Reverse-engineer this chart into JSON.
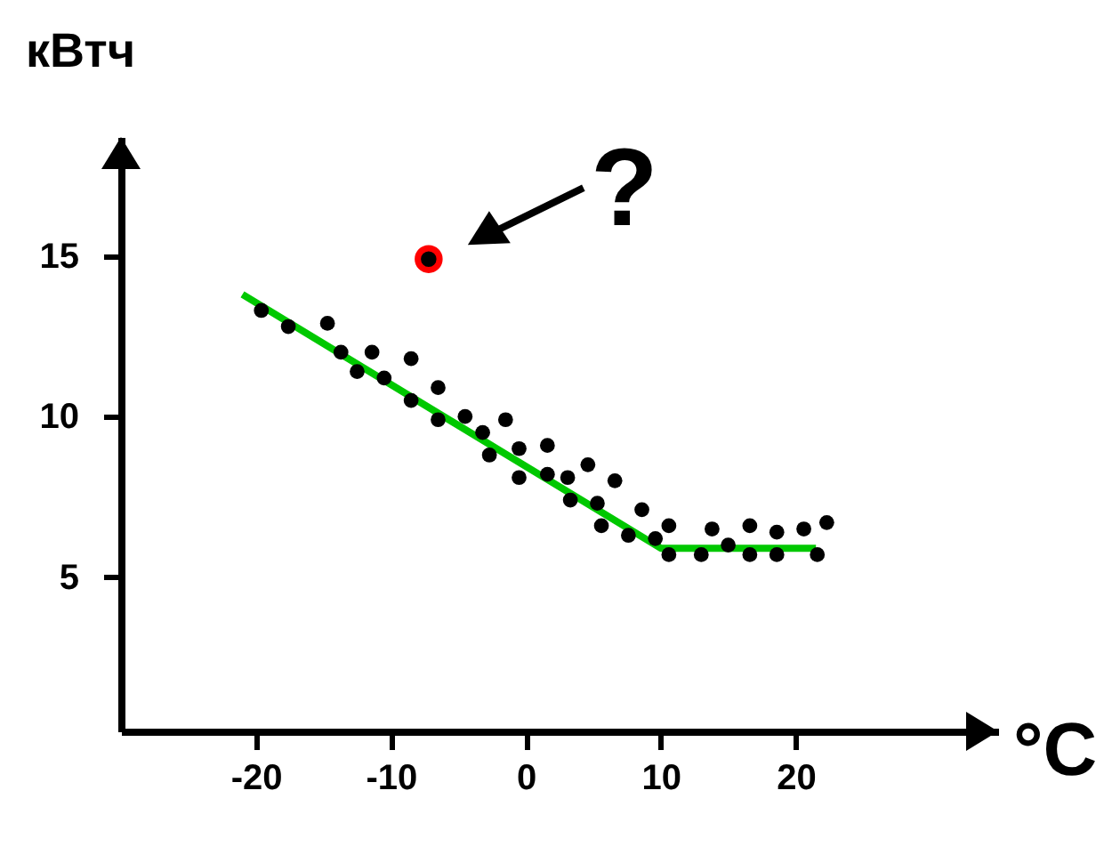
{
  "chart_data": {
    "type": "scatter",
    "xlabel": "°C",
    "ylabel": "кВтч",
    "xlim": [
      -30,
      35
    ],
    "ylim": [
      0.2,
      18.7
    ],
    "xticks": [
      -20,
      -10,
      0,
      10,
      20
    ],
    "yticks": [
      5,
      10,
      15
    ],
    "grid": false,
    "line_style": "solid",
    "annotations": [
      {
        "text": "?",
        "x": -7.2,
        "y": 14.9
      }
    ],
    "series": [
      {
        "marker": "circle",
        "color": "#000000",
        "x": [
          -19.6,
          -17.6,
          -14.7,
          -13.7,
          -12.5,
          -11.4,
          -10.5,
          -8.5,
          -8.5,
          -6.5,
          -6.5,
          -4.5,
          -3.2,
          -2.7,
          -1.5,
          -0.5,
          -0.5,
          1.6,
          1.6,
          3.1,
          3.3,
          4.6,
          5.3,
          5.6,
          6.6,
          7.6,
          8.6,
          9.6,
          10.6,
          10.6,
          13.0,
          13.8,
          15.0,
          16.6,
          16.6,
          18.6,
          18.6,
          20.6,
          21.6,
          22.3
        ],
        "values": [
          13.3,
          12.8,
          12.9,
          12.0,
          11.4,
          12.0,
          11.2,
          11.8,
          10.5,
          10.9,
          9.9,
          10.0,
          9.5,
          8.8,
          9.9,
          9.0,
          8.1,
          9.1,
          8.2,
          8.1,
          7.4,
          8.5,
          7.3,
          6.6,
          8.0,
          6.3,
          7.1,
          6.2,
          6.6,
          5.7,
          5.7,
          6.5,
          6.0,
          6.6,
          5.7,
          6.4,
          5.7,
          6.5,
          5.7,
          6.7
        ]
      },
      {
        "marker": "circle",
        "color": "#ff0000",
        "x": [
          -7.2
        ],
        "values": [
          14.9
        ]
      },
      {
        "type": "line",
        "color": "#00c800",
        "x": [
          -21,
          10,
          21.5
        ],
        "values": [
          13.8,
          5.9,
          5.9
        ]
      }
    ]
  }
}
